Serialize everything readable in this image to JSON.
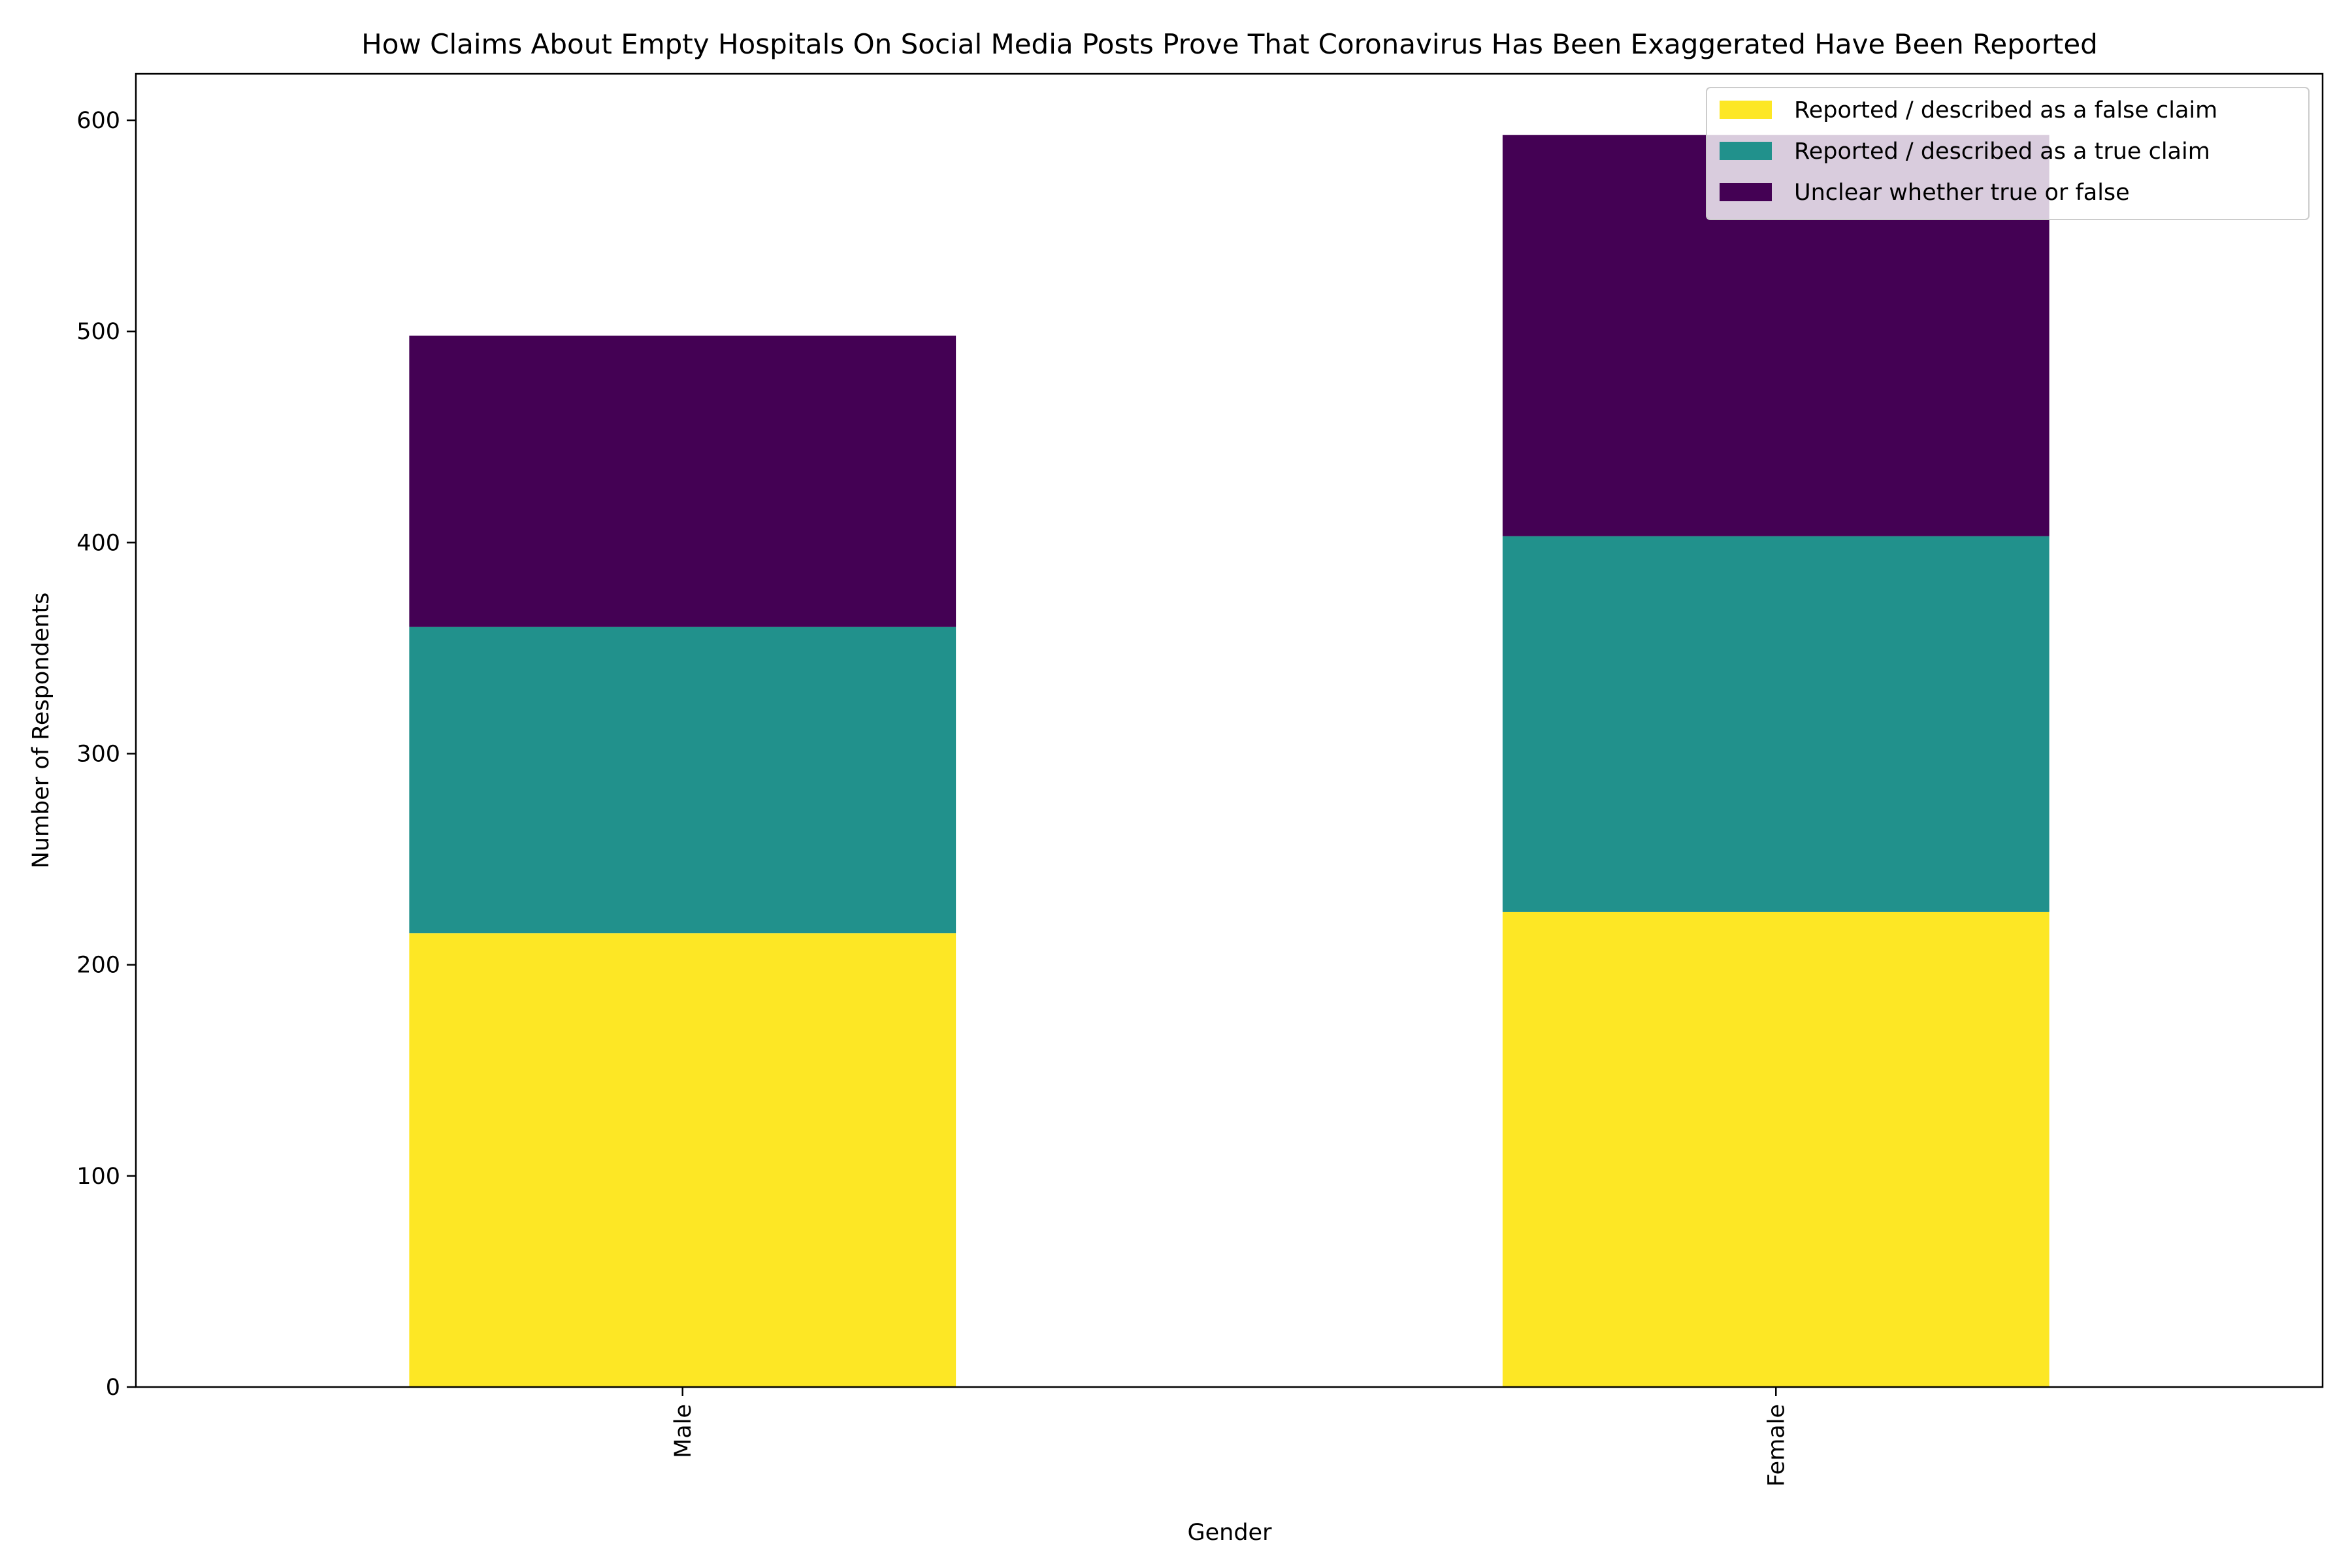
{
  "chart_data": {
    "type": "bar",
    "stacked": true,
    "title": "How Claims About Empty Hospitals On Social Media Posts Prove That Coronavirus Has Been Exaggerated Have Been Reported",
    "xlabel": "Gender",
    "ylabel": "Number of Respondents",
    "categories": [
      "Male",
      "Female"
    ],
    "ylim": [
      0,
      622
    ],
    "yticks": [
      0,
      100,
      200,
      300,
      400,
      500,
      600
    ],
    "grid": false,
    "legend_position": "top-right",
    "series": [
      {
        "name": "Reported / described as a false claim",
        "color": "#fde725",
        "values": [
          215,
          225
        ]
      },
      {
        "name": "Reported / described as a true claim",
        "color": "#21918c",
        "values": [
          145,
          178
        ]
      },
      {
        "name": "Unclear whether true or false",
        "color": "#440154",
        "values": [
          138,
          190
        ]
      }
    ]
  }
}
